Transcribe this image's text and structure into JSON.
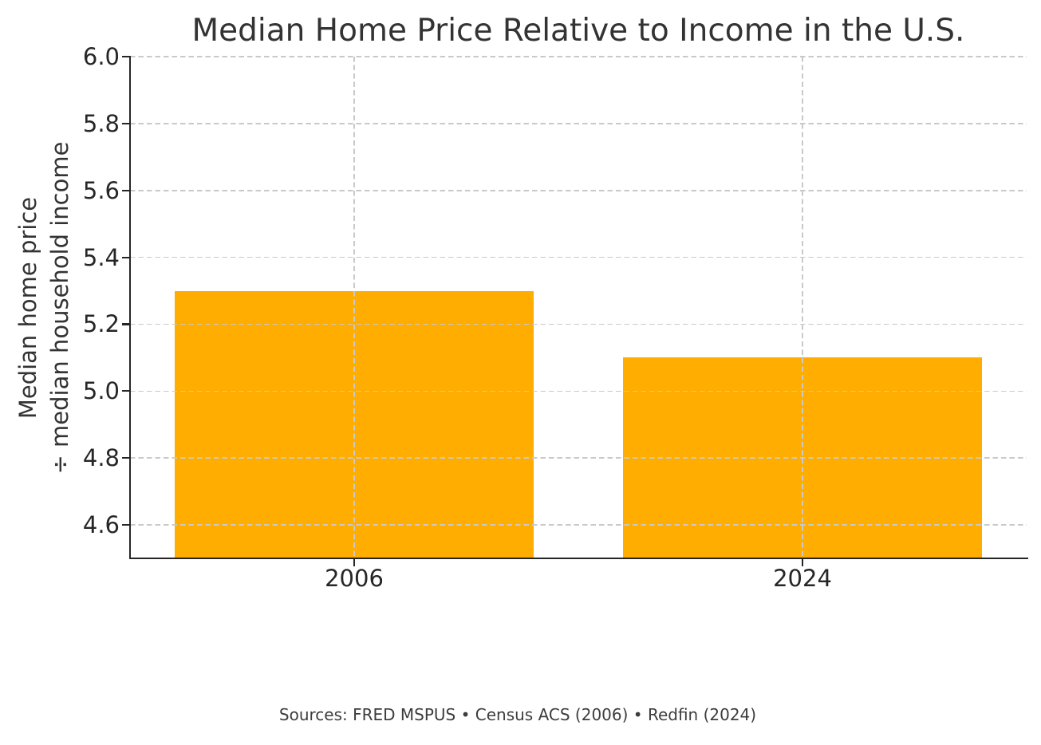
{
  "chart_data": {
    "type": "bar",
    "title": "Median Home Price Relative to Income in the U.S.",
    "ylabel_line1": "Median home price",
    "ylabel_line2": "÷ median household income",
    "categories": [
      "2006",
      "2024"
    ],
    "values": [
      5.3,
      5.1
    ],
    "ytick_labels": [
      "4.6",
      "4.8",
      "5.0",
      "5.2",
      "5.4",
      "5.6",
      "5.8",
      "6.0"
    ],
    "ylim": [
      4.5,
      6.0
    ],
    "bar_color": "#FFAD00",
    "grid": "dashed, drawn above bars",
    "legend_position": "none",
    "footnote": "Sources: FRED MSPUS • Census ACS (2006) • Redfin (2024)"
  },
  "colors": {
    "bar": "#FFAD00",
    "grid": "#c9c9c9",
    "spine": "#262626",
    "title_text": "#333333",
    "tick_text": "#262626",
    "footnote_text": "#3d3d3d",
    "background": "#ffffff"
  }
}
